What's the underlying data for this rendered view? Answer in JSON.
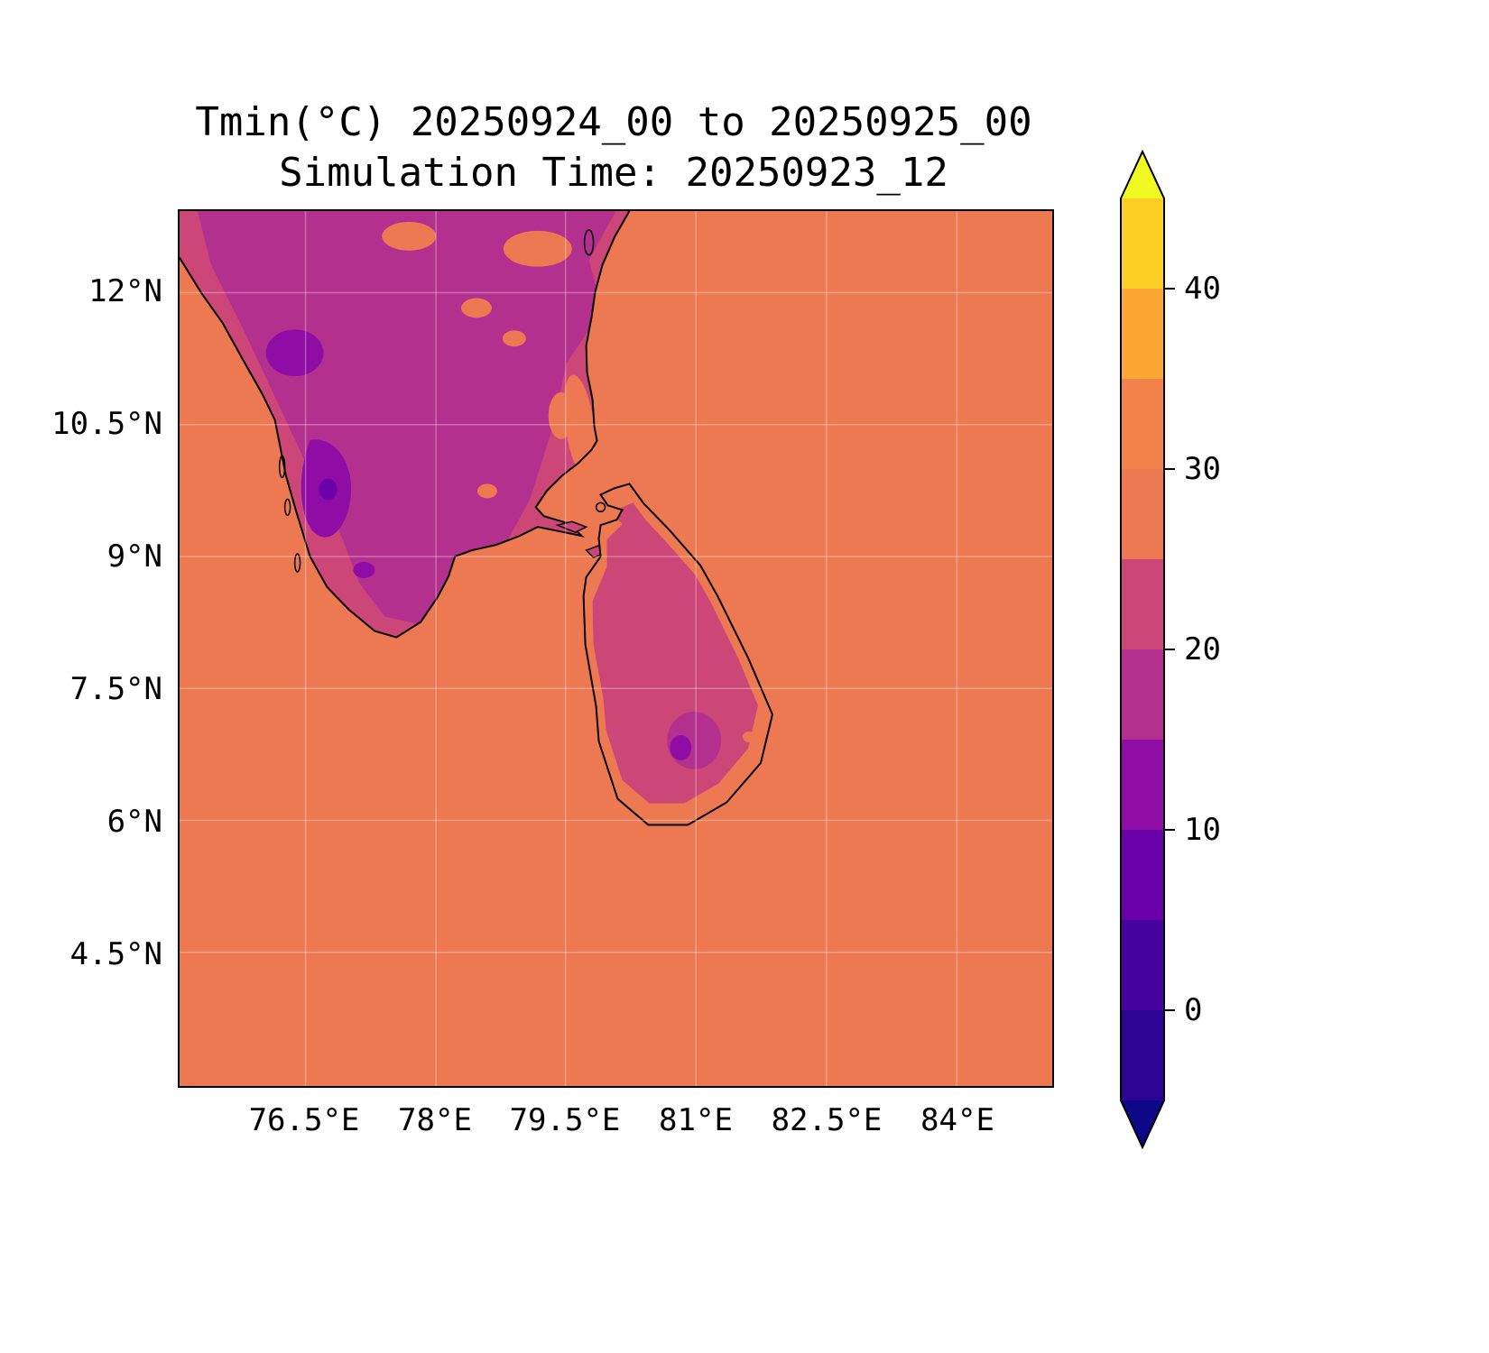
{
  "chart_data": {
    "type": "heatmap",
    "title": "Tmin(°C) 20250924_00 to 20250925_00",
    "subtitle": "Simulation Time: 20250923_12",
    "variable": "Tmin",
    "units": "°C",
    "valid_period": "20250924_00 to 20250925_00",
    "simulation_time": "20250923_12",
    "region": "Southern India and Sri Lanka",
    "x_ticks": [
      "76.5°E",
      "78°E",
      "79.5°E",
      "81°E",
      "82.5°E",
      "84°E"
    ],
    "y_ticks": [
      "12°N",
      "10.5°N",
      "9°N",
      "7.5°N",
      "6°N",
      "4.5°N"
    ],
    "x_range_deg_e": [
      75.05,
      85.1
    ],
    "y_range_deg_n": [
      2.98,
      12.93
    ],
    "grid": true,
    "colorbar": {
      "orientation": "vertical",
      "position": "right",
      "ticks": [
        40,
        30,
        20,
        10,
        0
      ],
      "tick_labels": [
        "40",
        "30",
        "20",
        "10",
        "0"
      ],
      "band_edges_c": [
        -5,
        0,
        5,
        10,
        15,
        20,
        25,
        30,
        35,
        40,
        45
      ],
      "band_colors": [
        "#2d0594",
        "#46039f",
        "#6a00a8",
        "#8f0da4",
        "#b3308e",
        "#cc4778",
        "#ed7953",
        "#f2844b",
        "#fca636",
        "#fcce25"
      ],
      "under_color": "#0d0887",
      "over_color": "#f0f921"
    },
    "field_summary": {
      "sea_tmin_band_c": "25-30",
      "india_coastal_plain_tmin_band_c": "20-25",
      "india_interior_tmin_band_c": "15-20",
      "india_highland_patch_tmin_band_c": "5-15",
      "sri_lanka_lowland_tmin_band_c": "20-25",
      "sri_lanka_highland_patch_tmin_band_c": "5-20"
    }
  },
  "colors": {
    "sea": "#ed7953",
    "land_pink": "#cc4778",
    "land_magenta": "#b3308e",
    "land_purple": "#8f0da4",
    "land_purple_dark": "#6a00a8",
    "coastline": "#000000",
    "background": "#ffffff"
  }
}
